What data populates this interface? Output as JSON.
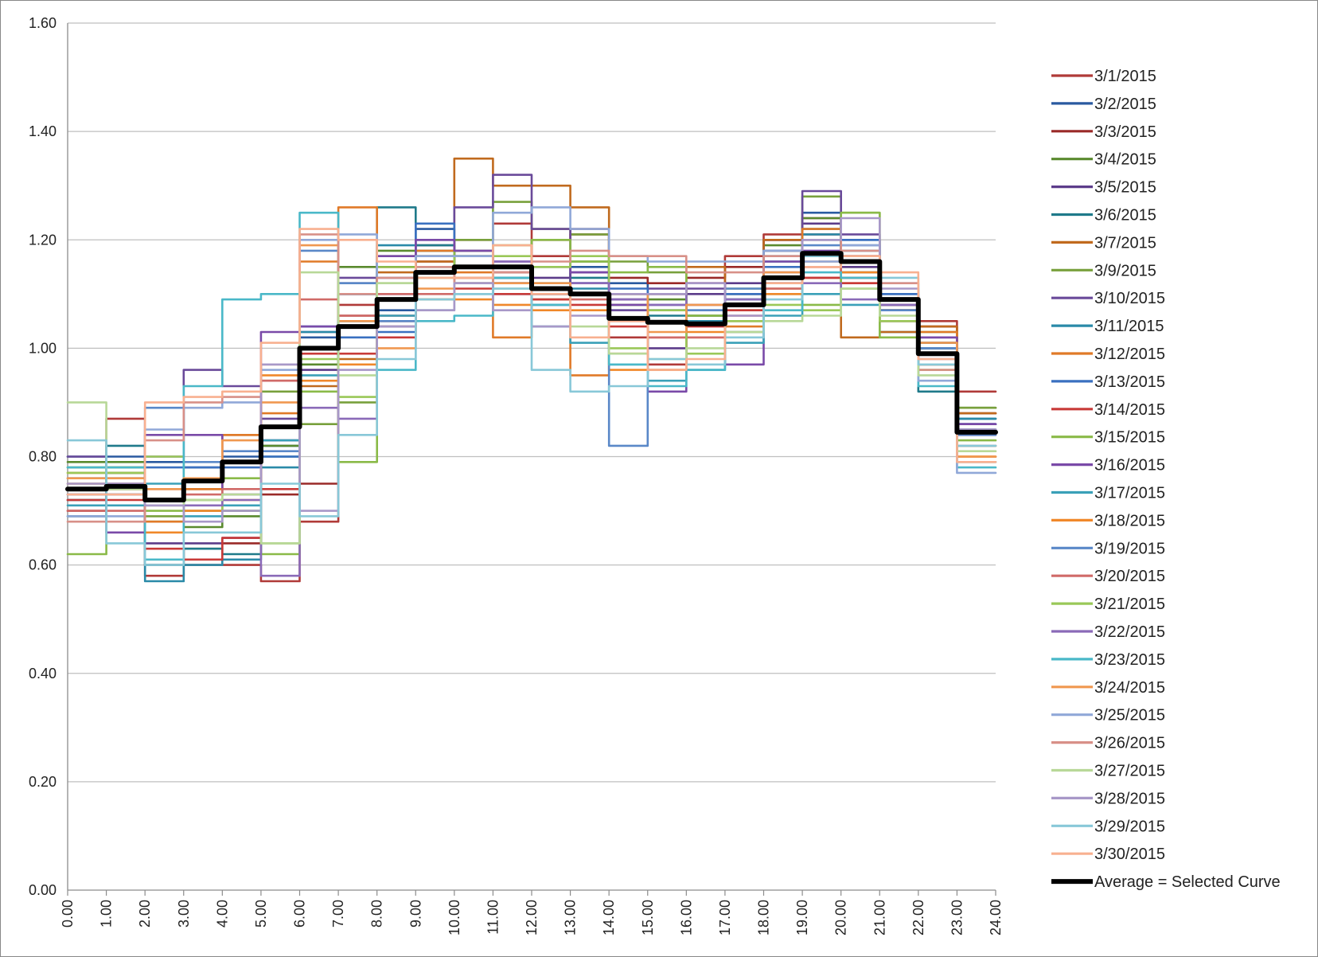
{
  "chart_data": {
    "type": "line",
    "title": "",
    "xlabel": "",
    "ylabel": "",
    "xlim": [
      0,
      24
    ],
    "ylim": [
      0,
      1.6
    ],
    "x_ticks": [
      "0.00",
      "1.00",
      "2.00",
      "3.00",
      "4.00",
      "5.00",
      "6.00",
      "7.00",
      "8.00",
      "9.00",
      "10.00",
      "11.00",
      "12.00",
      "13.00",
      "14.00",
      "15.00",
      "16.00",
      "17.00",
      "18.00",
      "19.00",
      "20.00",
      "21.00",
      "22.00",
      "23.00",
      "24.00"
    ],
    "y_ticks": [
      "0.00",
      "0.20",
      "0.40",
      "0.60",
      "0.80",
      "1.00",
      "1.20",
      "1.40",
      "1.60"
    ],
    "grid": "horizontal",
    "legend_position": "right",
    "step": true,
    "hours": [
      0,
      1,
      2,
      3,
      4,
      5,
      6,
      7,
      8,
      9,
      10,
      11,
      12,
      13,
      14,
      15,
      16,
      17,
      18,
      19,
      20,
      21,
      22,
      23
    ],
    "series": [
      {
        "name": "3/1/2015",
        "color": "#b03a38",
        "values": [
          0.72,
          0.87,
          0.58,
          0.6,
          0.6,
          0.57,
          0.68,
          1.08,
          1.06,
          1.17,
          1.2,
          1.23,
          1.17,
          1.22,
          1.02,
          0.97,
          1.12,
          1.17,
          1.21,
          1.21,
          1.13,
          1.08,
          1.05,
          0.92
        ]
      },
      {
        "name": "3/2/2015",
        "color": "#2a5aa0",
        "values": [
          0.8,
          0.8,
          0.79,
          0.78,
          0.8,
          0.82,
          1.02,
          1.05,
          1.07,
          1.22,
          1.15,
          1.1,
          1.08,
          1.15,
          1.12,
          1.1,
          1.06,
          1.1,
          1.2,
          1.25,
          1.2,
          1.1,
          1.0,
          0.87
        ]
      },
      {
        "name": "3/3/2015",
        "color": "#9a2a28",
        "values": [
          0.7,
          0.75,
          0.6,
          0.63,
          0.64,
          0.73,
          0.75,
          1.06,
          1.05,
          1.16,
          1.17,
          1.14,
          1.2,
          1.21,
          1.13,
          1.12,
          1.13,
          1.15,
          1.2,
          1.24,
          1.17,
          1.07,
          1.04,
          0.88
        ]
      },
      {
        "name": "3/4/2015",
        "color": "#5a8a2e",
        "values": [
          0.79,
          0.79,
          0.68,
          0.67,
          0.69,
          0.82,
          0.97,
          1.15,
          1.18,
          1.17,
          1.15,
          1.13,
          1.11,
          1.16,
          1.08,
          1.09,
          1.06,
          1.1,
          1.19,
          1.24,
          1.15,
          1.09,
          1.0,
          0.89
        ]
      },
      {
        "name": "3/5/2015",
        "color": "#5c3c8a",
        "values": [
          0.73,
          0.73,
          0.64,
          0.64,
          0.65,
          0.83,
          0.96,
          1.12,
          1.13,
          1.19,
          1.18,
          1.13,
          1.13,
          1.14,
          1.09,
          1.0,
          1.1,
          1.12,
          1.2,
          1.23,
          1.15,
          1.07,
          1.02,
          0.86
        ]
      },
      {
        "name": "3/6/2015",
        "color": "#1f7a8a",
        "values": [
          0.69,
          0.82,
          0.6,
          0.63,
          0.62,
          0.8,
          1.0,
          1.1,
          1.26,
          1.19,
          1.15,
          1.12,
          1.12,
          1.13,
          1.07,
          1.06,
          1.05,
          1.08,
          1.17,
          1.22,
          1.14,
          1.03,
          0.92,
          0.85
        ]
      },
      {
        "name": "3/7/2015",
        "color": "#c06a1e",
        "values": [
          0.75,
          0.78,
          0.72,
          0.74,
          0.84,
          0.94,
          0.93,
          0.98,
          1.14,
          1.16,
          1.35,
          1.3,
          1.3,
          1.26,
          1.1,
          1.1,
          1.15,
          1.05,
          1.2,
          1.13,
          1.02,
          1.03,
          1.04,
          0.88
        ]
      },
      {
        "name": "3/9/2015",
        "color": "#78a03c",
        "values": [
          0.78,
          0.74,
          0.69,
          0.7,
          0.7,
          0.92,
          0.86,
          0.9,
          1.17,
          1.18,
          1.2,
          1.27,
          1.22,
          1.21,
          1.16,
          1.14,
          1.05,
          1.07,
          1.18,
          1.28,
          1.25,
          1.08,
          1.03,
          0.89
        ]
      },
      {
        "name": "3/10/2015",
        "color": "#6a4a9a",
        "values": [
          0.8,
          0.77,
          0.8,
          0.96,
          0.93,
          0.87,
          1.03,
          1.13,
          1.1,
          1.2,
          1.26,
          1.32,
          1.22,
          1.12,
          1.07,
          1.11,
          1.11,
          1.09,
          1.18,
          1.29,
          1.21,
          1.08,
          1.01,
          0.86
        ]
      },
      {
        "name": "3/11/2015",
        "color": "#2a8aa8",
        "values": [
          0.72,
          0.77,
          0.57,
          0.6,
          0.61,
          0.78,
          1.03,
          1.1,
          1.19,
          1.18,
          1.13,
          1.13,
          1.1,
          1.11,
          1.1,
          1.07,
          1.05,
          1.09,
          1.16,
          1.21,
          1.18,
          1.08,
          1.01,
          0.87
        ]
      },
      {
        "name": "3/12/2015",
        "color": "#e07a28",
        "values": [
          0.77,
          0.77,
          0.68,
          0.74,
          0.84,
          0.88,
          1.16,
          1.26,
          1.15,
          1.18,
          1.14,
          1.02,
          1.09,
          0.95,
          0.99,
          0.96,
          1.02,
          1.04,
          1.11,
          1.22,
          1.12,
          1.05,
          1.03,
          0.8
        ]
      },
      {
        "name": "3/13/2015",
        "color": "#3a70c0",
        "values": [
          0.76,
          0.76,
          0.78,
          0.78,
          0.78,
          0.8,
          1.04,
          1.02,
          1.03,
          1.23,
          1.17,
          1.15,
          1.1,
          1.12,
          1.11,
          1.07,
          1.07,
          1.1,
          1.15,
          1.2,
          1.2,
          1.1,
          1.0,
          0.86
        ]
      },
      {
        "name": "3/14/2015",
        "color": "#c83a38",
        "values": [
          0.72,
          0.72,
          0.63,
          0.61,
          0.65,
          0.74,
          0.99,
          0.99,
          1.02,
          1.09,
          1.11,
          1.1,
          1.09,
          1.08,
          1.04,
          1.02,
          1.04,
          1.07,
          1.12,
          1.13,
          1.12,
          1.07,
          0.99,
          0.84
        ]
      },
      {
        "name": "3/15/2015",
        "color": "#8aba48",
        "values": [
          0.62,
          0.78,
          0.7,
          0.72,
          0.76,
          0.62,
          0.92,
          0.79,
          1.15,
          1.15,
          1.18,
          1.19,
          1.2,
          1.16,
          1.14,
          1.15,
          1.06,
          1.11,
          1.1,
          1.08,
          1.25,
          1.02,
          0.99,
          0.83
        ]
      },
      {
        "name": "3/16/2015",
        "color": "#7a4aa8",
        "values": [
          0.74,
          0.66,
          0.84,
          0.84,
          0.73,
          1.03,
          1.04,
          1.1,
          1.17,
          1.2,
          1.18,
          1.16,
          1.15,
          1.14,
          1.08,
          0.92,
          1.08,
          0.97,
          1.16,
          1.18,
          1.17,
          1.05,
          1.02,
          0.86
        ]
      },
      {
        "name": "3/17/2015",
        "color": "#3aa0b8",
        "values": [
          0.71,
          0.71,
          0.75,
          0.69,
          0.71,
          0.83,
          0.95,
          1.05,
          1.06,
          1.07,
          1.1,
          1.15,
          1.04,
          1.01,
          0.97,
          0.94,
          0.96,
          1.01,
          1.06,
          1.1,
          1.08,
          1.07,
          0.97,
          0.79
        ]
      },
      {
        "name": "3/18/2015",
        "color": "#f0882a",
        "values": [
          0.74,
          0.74,
          0.66,
          0.7,
          0.72,
          0.95,
          0.94,
          0.97,
          1.04,
          1.09,
          1.09,
          1.08,
          1.07,
          1.07,
          0.96,
          0.96,
          1.03,
          1.03,
          1.1,
          1.15,
          1.14,
          1.07,
          0.97,
          0.8
        ]
      },
      {
        "name": "3/19/2015",
        "color": "#5a88c8",
        "values": [
          0.73,
          0.73,
          0.89,
          0.79,
          0.81,
          0.81,
          1.18,
          1.12,
          1.05,
          1.15,
          1.12,
          1.12,
          1.1,
          1.12,
          0.82,
          1.08,
          1.07,
          1.11,
          1.12,
          1.19,
          1.19,
          1.07,
          1.0,
          0.84
        ]
      },
      {
        "name": "3/20/2015",
        "color": "#d06a68",
        "values": [
          0.7,
          0.7,
          0.74,
          0.73,
          0.74,
          0.94,
          1.09,
          1.06,
          1.1,
          1.1,
          1.13,
          1.12,
          1.1,
          1.09,
          1.05,
          1.02,
          1.02,
          1.06,
          1.11,
          1.15,
          1.13,
          1.08,
          0.97,
          0.82
        ]
      },
      {
        "name": "3/21/2015",
        "color": "#9ac858",
        "values": [
          0.77,
          0.77,
          0.8,
          0.72,
          0.7,
          0.64,
          0.98,
          0.91,
          1.12,
          1.13,
          1.17,
          1.17,
          1.15,
          1.17,
          1.0,
          1.07,
          0.99,
          1.05,
          1.08,
          1.07,
          1.11,
          1.05,
          0.96,
          0.82
        ]
      },
      {
        "name": "3/22/2015",
        "color": "#8a6ab8",
        "values": [
          0.74,
          0.74,
          0.71,
          0.71,
          0.72,
          0.58,
          0.89,
          0.87,
          1.04,
          1.14,
          1.12,
          1.16,
          1.11,
          1.12,
          1.09,
          1.08,
          1.12,
          1.09,
          1.14,
          1.12,
          1.09,
          1.08,
          0.99,
          0.85
        ]
      },
      {
        "name": "3/23/2015",
        "color": "#4ab8c8",
        "values": [
          0.78,
          0.78,
          0.61,
          0.93,
          1.09,
          1.1,
          1.25,
          1.1,
          0.96,
          1.05,
          1.06,
          1.13,
          1.08,
          1.1,
          0.97,
          0.93,
          0.96,
          1.03,
          1.07,
          1.14,
          1.13,
          1.09,
          0.93,
          0.78
        ]
      },
      {
        "name": "3/24/2015",
        "color": "#f09850",
        "values": [
          0.76,
          0.76,
          0.74,
          0.76,
          0.83,
          0.9,
          1.19,
          1.05,
          1.0,
          1.11,
          1.13,
          1.12,
          1.12,
          1.1,
          1.1,
          1.03,
          1.08,
          1.08,
          1.14,
          1.16,
          1.17,
          1.09,
          1.01,
          0.8
        ]
      },
      {
        "name": "3/25/2015",
        "color": "#90a8d8",
        "values": [
          0.69,
          0.69,
          0.85,
          0.89,
          0.9,
          0.96,
          1.2,
          1.21,
          1.13,
          1.17,
          1.17,
          1.25,
          1.26,
          1.22,
          1.17,
          1.16,
          1.16,
          1.16,
          1.18,
          1.16,
          1.19,
          1.12,
          0.94,
          0.77
        ]
      },
      {
        "name": "3/26/2015",
        "color": "#d89088",
        "values": [
          0.68,
          0.68,
          0.83,
          0.9,
          0.91,
          0.97,
          1.21,
          1.1,
          1.13,
          1.15,
          1.12,
          1.14,
          1.16,
          1.18,
          1.17,
          1.17,
          1.14,
          1.14,
          1.17,
          1.2,
          1.18,
          1.12,
          0.96,
          0.82
        ]
      },
      {
        "name": "3/27/2015",
        "color": "#b8d898",
        "values": [
          0.9,
          0.74,
          0.71,
          0.72,
          0.73,
          0.64,
          1.14,
          0.95,
          1.12,
          1.09,
          1.12,
          1.11,
          1.11,
          1.04,
          0.99,
          0.98,
          1.0,
          1.03,
          1.05,
          1.06,
          1.11,
          1.06,
          0.95,
          0.81
        ]
      },
      {
        "name": "3/28/2015",
        "color": "#a898c8",
        "values": [
          0.75,
          0.75,
          0.71,
          0.68,
          0.7,
          0.97,
          0.7,
          0.96,
          1.04,
          1.07,
          1.12,
          1.07,
          1.04,
          1.06,
          1.1,
          1.1,
          1.12,
          1.06,
          1.13,
          1.2,
          1.24,
          1.11,
          0.98,
          0.85
        ]
      },
      {
        "name": "3/29/2015",
        "color": "#88c8d8",
        "values": [
          0.83,
          0.64,
          0.6,
          0.66,
          0.66,
          0.75,
          0.69,
          0.84,
          0.98,
          1.09,
          1.1,
          1.11,
          0.96,
          0.92,
          0.93,
          0.98,
          0.97,
          1.02,
          1.09,
          1.17,
          1.16,
          1.13,
          0.97,
          0.82
        ]
      },
      {
        "name": "3/30/2015",
        "color": "#f8b090",
        "values": [
          0.73,
          0.73,
          0.9,
          0.91,
          0.92,
          1.01,
          1.22,
          1.2,
          1.16,
          1.13,
          1.13,
          1.19,
          1.1,
          1.02,
          1.05,
          0.96,
          0.98,
          1.08,
          1.12,
          1.15,
          1.17,
          1.14,
          0.98,
          0.79
        ]
      },
      {
        "name": "Average = Selected Curve",
        "color": "#000000",
        "average": true,
        "values": [
          0.74,
          0.745,
          0.72,
          0.755,
          0.79,
          0.855,
          1.0,
          1.04,
          1.09,
          1.14,
          1.15,
          1.15,
          1.11,
          1.1,
          1.055,
          1.048,
          1.045,
          1.08,
          1.13,
          1.175,
          1.16,
          1.09,
          0.99,
          0.845
        ]
      }
    ]
  }
}
